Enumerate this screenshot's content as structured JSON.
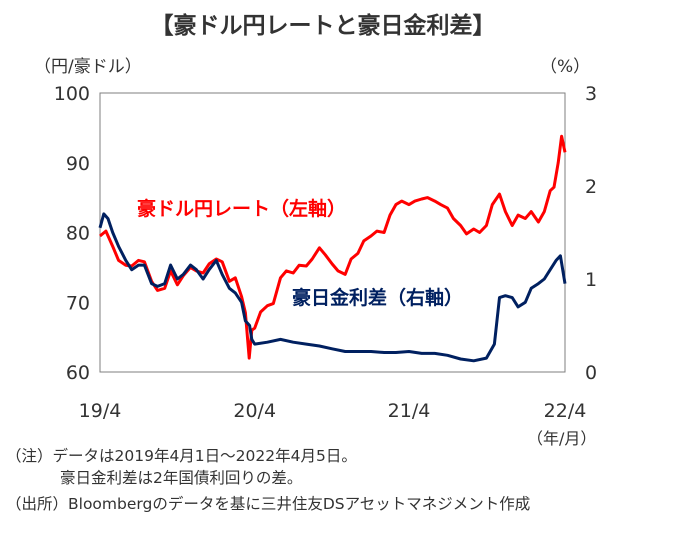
{
  "chart_data": {
    "type": "line",
    "title": "【豪ドル円レートと豪日金利差】",
    "left_axis_unit": "（円/豪ドル）",
    "right_axis_unit": "（%）",
    "x_axis_unit": "（年/月）",
    "x_ticks": [
      "19/4",
      "20/4",
      "21/4",
      "22/4"
    ],
    "left_ylim": [
      60,
      100
    ],
    "left_yticks": [
      "60",
      "70",
      "80",
      "90",
      "100"
    ],
    "right_ylim": [
      0,
      3
    ],
    "right_yticks": [
      "0",
      "1",
      "2",
      "3"
    ],
    "grid": false,
    "series": [
      {
        "name": "豪ドル円レート（左軸）",
        "axis": "left",
        "color": "#ff0000",
        "points": [
          [
            "2019-04-01",
            79.5
          ],
          [
            "2019-04-15",
            80.2
          ],
          [
            "2019-05-01",
            78.0
          ],
          [
            "2019-05-15",
            76.0
          ],
          [
            "2019-06-01",
            75.3
          ],
          [
            "2019-06-15",
            75.2
          ],
          [
            "2019-07-01",
            76.0
          ],
          [
            "2019-07-15",
            75.8
          ],
          [
            "2019-08-01",
            73.0
          ],
          [
            "2019-08-15",
            71.7
          ],
          [
            "2019-09-01",
            72.0
          ],
          [
            "2019-09-15",
            74.5
          ],
          [
            "2019-10-01",
            72.5
          ],
          [
            "2019-10-15",
            73.8
          ],
          [
            "2019-11-01",
            75.0
          ],
          [
            "2019-11-15",
            74.5
          ],
          [
            "2019-12-01",
            74.2
          ],
          [
            "2019-12-15",
            75.5
          ],
          [
            "2020-01-01",
            76.2
          ],
          [
            "2020-01-15",
            75.8
          ],
          [
            "2020-02-01",
            73.0
          ],
          [
            "2020-02-15",
            73.5
          ],
          [
            "2020-03-01",
            70.8
          ],
          [
            "2020-03-10",
            68.5
          ],
          [
            "2020-03-19",
            62.0
          ],
          [
            "2020-03-25",
            66.0
          ],
          [
            "2020-04-01",
            66.3
          ],
          [
            "2020-04-15",
            68.6
          ],
          [
            "2020-05-01",
            69.5
          ],
          [
            "2020-05-15",
            69.8
          ],
          [
            "2020-06-01",
            73.5
          ],
          [
            "2020-06-15",
            74.5
          ],
          [
            "2020-07-01",
            74.2
          ],
          [
            "2020-07-15",
            75.3
          ],
          [
            "2020-08-01",
            75.2
          ],
          [
            "2020-08-15",
            76.2
          ],
          [
            "2020-09-01",
            77.8
          ],
          [
            "2020-09-15",
            76.8
          ],
          [
            "2020-10-01",
            75.5
          ],
          [
            "2020-10-15",
            74.5
          ],
          [
            "2020-11-01",
            74.0
          ],
          [
            "2020-11-15",
            76.2
          ],
          [
            "2020-12-01",
            77.0
          ],
          [
            "2020-12-15",
            78.8
          ],
          [
            "2021-01-01",
            79.5
          ],
          [
            "2021-01-15",
            80.2
          ],
          [
            "2021-02-01",
            80.0
          ],
          [
            "2021-02-15",
            82.5
          ],
          [
            "2021-03-01",
            84.0
          ],
          [
            "2021-03-15",
            84.5
          ],
          [
            "2021-04-01",
            84.0
          ],
          [
            "2021-04-15",
            84.5
          ],
          [
            "2021-05-01",
            84.8
          ],
          [
            "2021-05-15",
            85.0
          ],
          [
            "2021-06-01",
            84.5
          ],
          [
            "2021-06-15",
            84.0
          ],
          [
            "2021-07-01",
            83.5
          ],
          [
            "2021-07-15",
            82.0
          ],
          [
            "2021-08-01",
            81.0
          ],
          [
            "2021-08-15",
            79.8
          ],
          [
            "2021-09-01",
            80.5
          ],
          [
            "2021-09-15",
            80.0
          ],
          [
            "2021-10-01",
            81.0
          ],
          [
            "2021-10-15",
            84.0
          ],
          [
            "2021-11-01",
            85.5
          ],
          [
            "2021-11-15",
            83.0
          ],
          [
            "2021-12-01",
            81.0
          ],
          [
            "2021-12-15",
            82.5
          ],
          [
            "2022-01-01",
            82.0
          ],
          [
            "2022-01-15",
            83.0
          ],
          [
            "2022-02-01",
            81.5
          ],
          [
            "2022-02-15",
            83.0
          ],
          [
            "2022-03-01",
            86.0
          ],
          [
            "2022-03-10",
            86.5
          ],
          [
            "2022-03-20",
            90.0
          ],
          [
            "2022-03-28",
            93.8
          ],
          [
            "2022-04-05",
            91.5
          ]
        ]
      },
      {
        "name": "豪日金利差（右軸）",
        "axis": "right",
        "color": "#002060",
        "points": [
          [
            "2019-04-01",
            1.55
          ],
          [
            "2019-04-10",
            1.7
          ],
          [
            "2019-04-20",
            1.65
          ],
          [
            "2019-05-01",
            1.5
          ],
          [
            "2019-05-15",
            1.35
          ],
          [
            "2019-06-01",
            1.2
          ],
          [
            "2019-06-15",
            1.1
          ],
          [
            "2019-07-01",
            1.15
          ],
          [
            "2019-07-15",
            1.15
          ],
          [
            "2019-08-01",
            0.95
          ],
          [
            "2019-08-15",
            0.92
          ],
          [
            "2019-09-01",
            0.95
          ],
          [
            "2019-09-15",
            1.15
          ],
          [
            "2019-10-01",
            1.0
          ],
          [
            "2019-10-15",
            1.05
          ],
          [
            "2019-11-01",
            1.15
          ],
          [
            "2019-11-15",
            1.1
          ],
          [
            "2019-12-01",
            1.0
          ],
          [
            "2019-12-15",
            1.1
          ],
          [
            "2020-01-01",
            1.2
          ],
          [
            "2020-01-15",
            1.05
          ],
          [
            "2020-02-01",
            0.9
          ],
          [
            "2020-02-15",
            0.85
          ],
          [
            "2020-03-01",
            0.75
          ],
          [
            "2020-03-10",
            0.55
          ],
          [
            "2020-03-20",
            0.5
          ],
          [
            "2020-03-25",
            0.35
          ],
          [
            "2020-04-01",
            0.3
          ],
          [
            "2020-05-01",
            0.32
          ],
          [
            "2020-06-01",
            0.35
          ],
          [
            "2020-07-01",
            0.32
          ],
          [
            "2020-08-01",
            0.3
          ],
          [
            "2020-09-01",
            0.28
          ],
          [
            "2020-10-01",
            0.25
          ],
          [
            "2020-11-01",
            0.22
          ],
          [
            "2020-12-01",
            0.22
          ],
          [
            "2021-01-01",
            0.22
          ],
          [
            "2021-02-01",
            0.21
          ],
          [
            "2021-03-01",
            0.21
          ],
          [
            "2021-04-01",
            0.22
          ],
          [
            "2021-05-01",
            0.2
          ],
          [
            "2021-06-01",
            0.2
          ],
          [
            "2021-07-01",
            0.18
          ],
          [
            "2021-08-01",
            0.14
          ],
          [
            "2021-09-01",
            0.12
          ],
          [
            "2021-10-01",
            0.15
          ],
          [
            "2021-10-20",
            0.3
          ],
          [
            "2021-11-01",
            0.8
          ],
          [
            "2021-11-15",
            0.82
          ],
          [
            "2021-12-01",
            0.8
          ],
          [
            "2021-12-15",
            0.7
          ],
          [
            "2022-01-01",
            0.75
          ],
          [
            "2022-01-15",
            0.9
          ],
          [
            "2022-02-01",
            0.95
          ],
          [
            "2022-02-15",
            1.0
          ],
          [
            "2022-03-01",
            1.1
          ],
          [
            "2022-03-15",
            1.2
          ],
          [
            "2022-03-25",
            1.25
          ],
          [
            "2022-04-05",
            0.95
          ]
        ]
      }
    ]
  },
  "notes": [
    "（注）データは2019年4月1日～2022年4月5日。",
    "豪日金利差は2年国債利回りの差。",
    "（出所）Bloombergのデータを基に三井住友DSアセットマネジメント作成"
  ]
}
